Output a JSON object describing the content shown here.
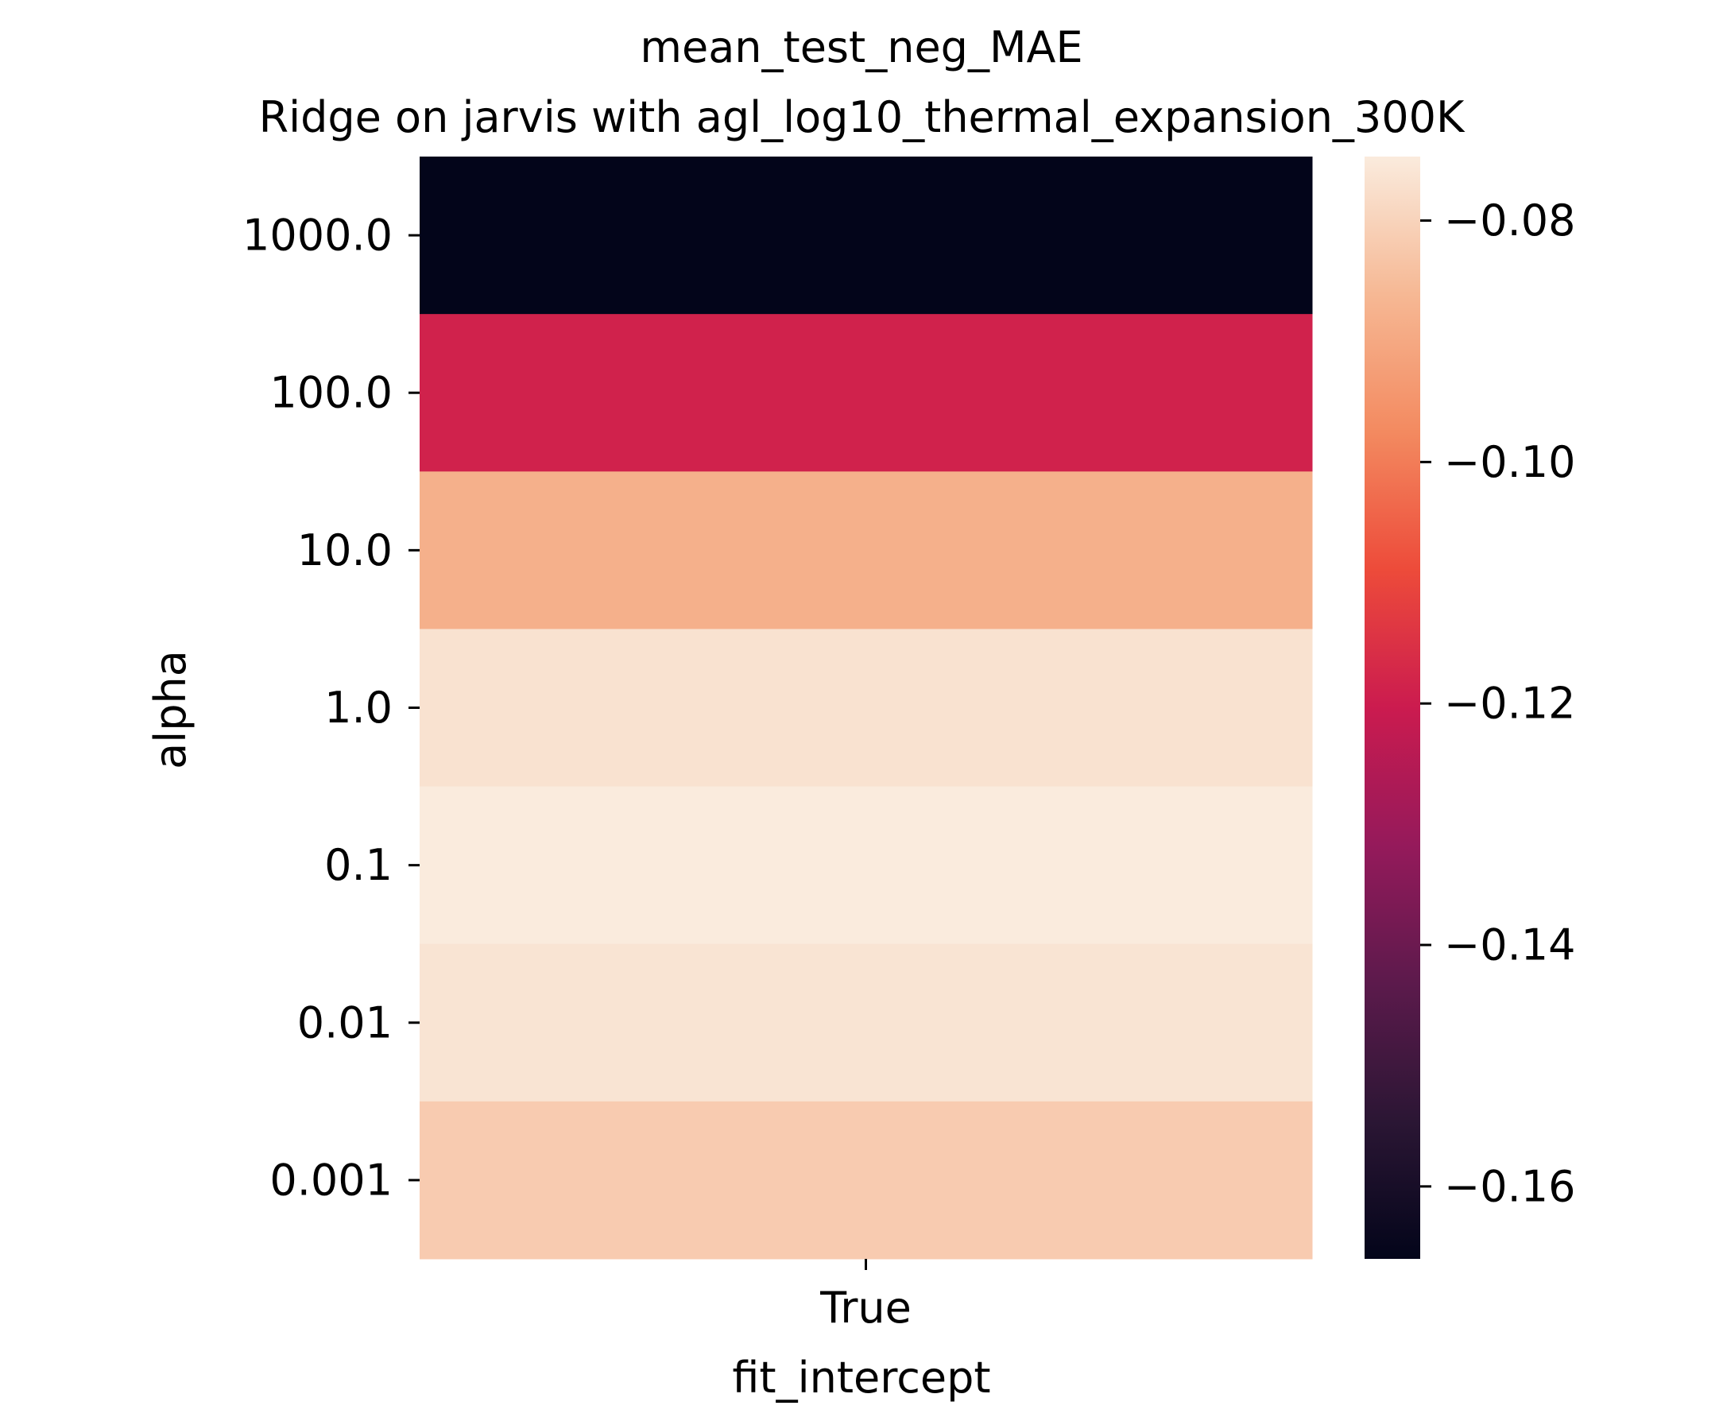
{
  "chart_data": {
    "type": "heatmap",
    "title": "mean_test_neg_MAE",
    "subtitle": "Ridge on jarvis with agl_log10_thermal_expansion_300K",
    "xlabel": "fit_intercept",
    "ylabel": "alpha",
    "x_categories": [
      "True"
    ],
    "y_categories": [
      "1000.0",
      "100.0",
      "10.0",
      "1.0",
      "0.1",
      "0.01",
      "0.001"
    ],
    "values": [
      [
        -0.166
      ],
      [
        -0.1188
      ],
      [
        -0.0881
      ],
      [
        -0.0768
      ],
      [
        -0.0747
      ],
      [
        -0.0762
      ],
      [
        -0.0818
      ]
    ],
    "colorbar": {
      "vmin": -0.166,
      "vmax": -0.0747,
      "ticks": [
        -0.08,
        -0.1,
        -0.12,
        -0.14,
        -0.16
      ],
      "tick_labels": [
        "−0.08",
        "−0.10",
        "−0.12",
        "−0.14",
        "−0.16"
      ]
    }
  },
  "colormap": [
    "#03051a",
    "#2b1634",
    "#5c1a4c",
    "#951a5b",
    "#cb1b4f",
    "#ed4b3a",
    "#f38a60",
    "#f6b894",
    "#faebdd"
  ]
}
